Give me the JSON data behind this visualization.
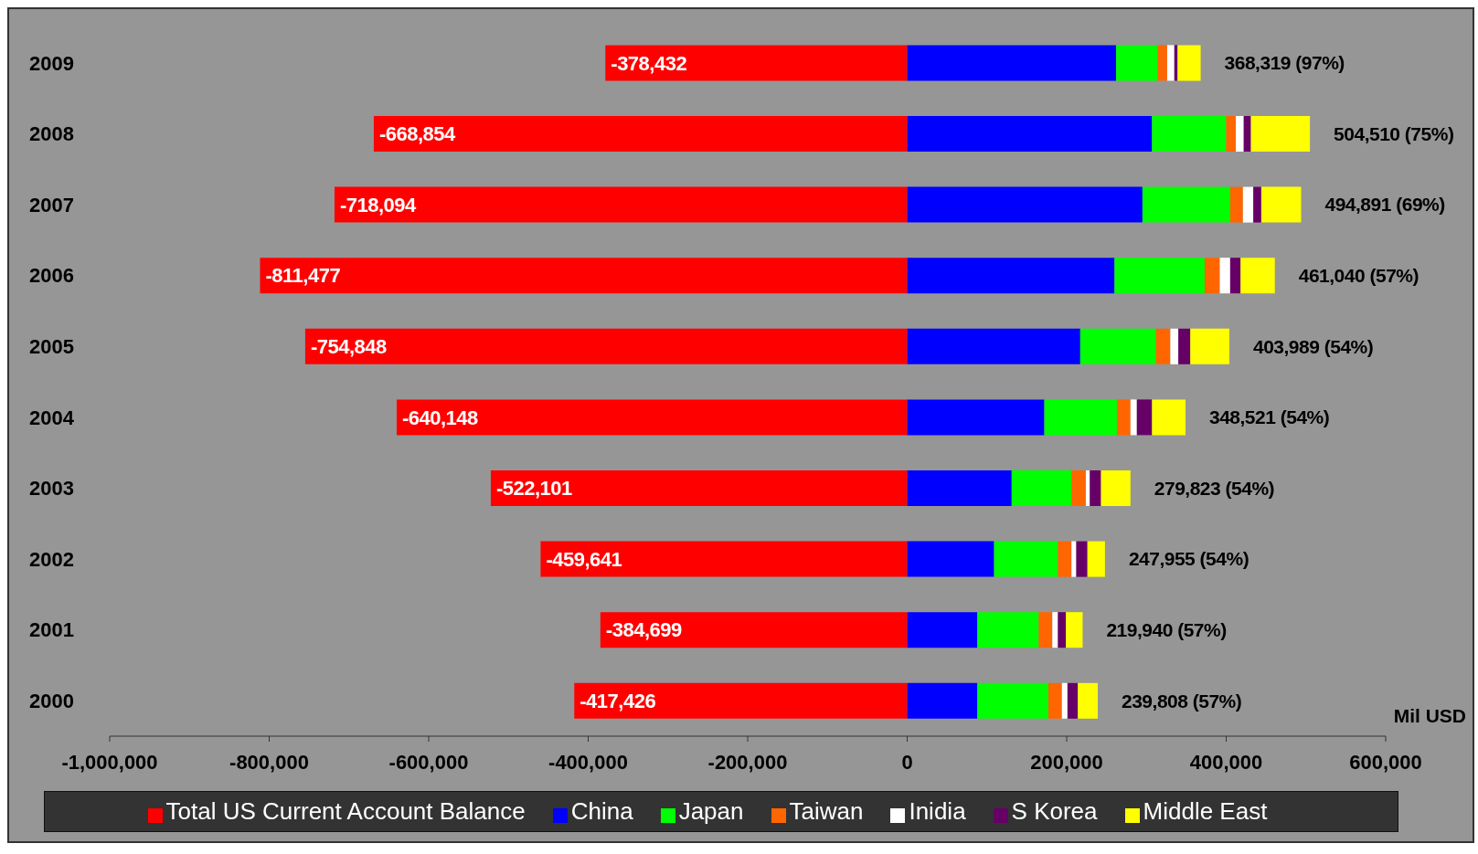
{
  "chart_data": {
    "type": "bar",
    "orientation": "horizontal",
    "stacked": true,
    "xlabel": "Mil USD",
    "categories": [
      "2009",
      "2008",
      "2007",
      "2006",
      "2005",
      "2004",
      "2003",
      "2002",
      "2001",
      "2000"
    ],
    "series": [
      {
        "name": "Total US Current Account Balance",
        "color": "#ff0000",
        "values": [
          -378432,
          -668854,
          -718094,
          -811477,
          -754848,
          -640148,
          -522101,
          -459641,
          -384699,
          -417426
        ],
        "value_labels": [
          "-378,432",
          "-668,854",
          "-718,094",
          "-811,477",
          "-754,848",
          "-640,148",
          "-522,101",
          "-459,641",
          "-384,699",
          "-417,426"
        ]
      },
      {
        "name": "China",
        "color": "#0000ff",
        "values": [
          262000,
          307000,
          295000,
          260000,
          217000,
          172000,
          131000,
          109000,
          88000,
          88000
        ]
      },
      {
        "name": "Japan",
        "color": "#00ff00",
        "values": [
          52000,
          93000,
          110000,
          113000,
          95000,
          91000,
          75000,
          80000,
          77000,
          89000
        ]
      },
      {
        "name": "Taiwan",
        "color": "#ff6600",
        "values": [
          12000,
          12000,
          16000,
          19000,
          18000,
          17000,
          18000,
          17000,
          17000,
          17000
        ]
      },
      {
        "name": "Inidia",
        "color": "#ffffff",
        "values": [
          9000,
          10000,
          13000,
          13000,
          10000,
          8000,
          5000,
          6000,
          7000,
          7000
        ]
      },
      {
        "name": "S Korea",
        "color": "#660066",
        "values": [
          4000,
          9000,
          10000,
          13000,
          15000,
          19000,
          14000,
          14000,
          10000,
          13000
        ]
      },
      {
        "name": "Middle East",
        "color": "#ffff00",
        "values": [
          29000,
          74000,
          50000,
          43000,
          49000,
          42000,
          37000,
          22000,
          21000,
          25000
        ]
      }
    ],
    "totals": [
      "368,319 (97%)",
      "504,510 (75%)",
      "494,891 (69%)",
      "461,040 (57%)",
      "403,989 (54%)",
      "348,521 (54%)",
      "279,823 (54%)",
      "247,955 (54%)",
      "219,940 (57%)",
      "239,808 (57%)"
    ],
    "xlim": [
      -1000000,
      600000
    ],
    "xticks": [
      {
        "value": -1000000,
        "label": "-1,000,000"
      },
      {
        "value": -800000,
        "label": "-800,000"
      },
      {
        "value": -600000,
        "label": "-600,000"
      },
      {
        "value": -400000,
        "label": "-400,000"
      },
      {
        "value": -200000,
        "label": "-200,000"
      },
      0,
      {
        "value": 200000,
        "label": "200,000"
      },
      {
        "value": 400000,
        "label": "400,000"
      },
      {
        "value": 600000,
        "label": "600,000"
      }
    ],
    "grid": false,
    "legend": "bottom"
  }
}
